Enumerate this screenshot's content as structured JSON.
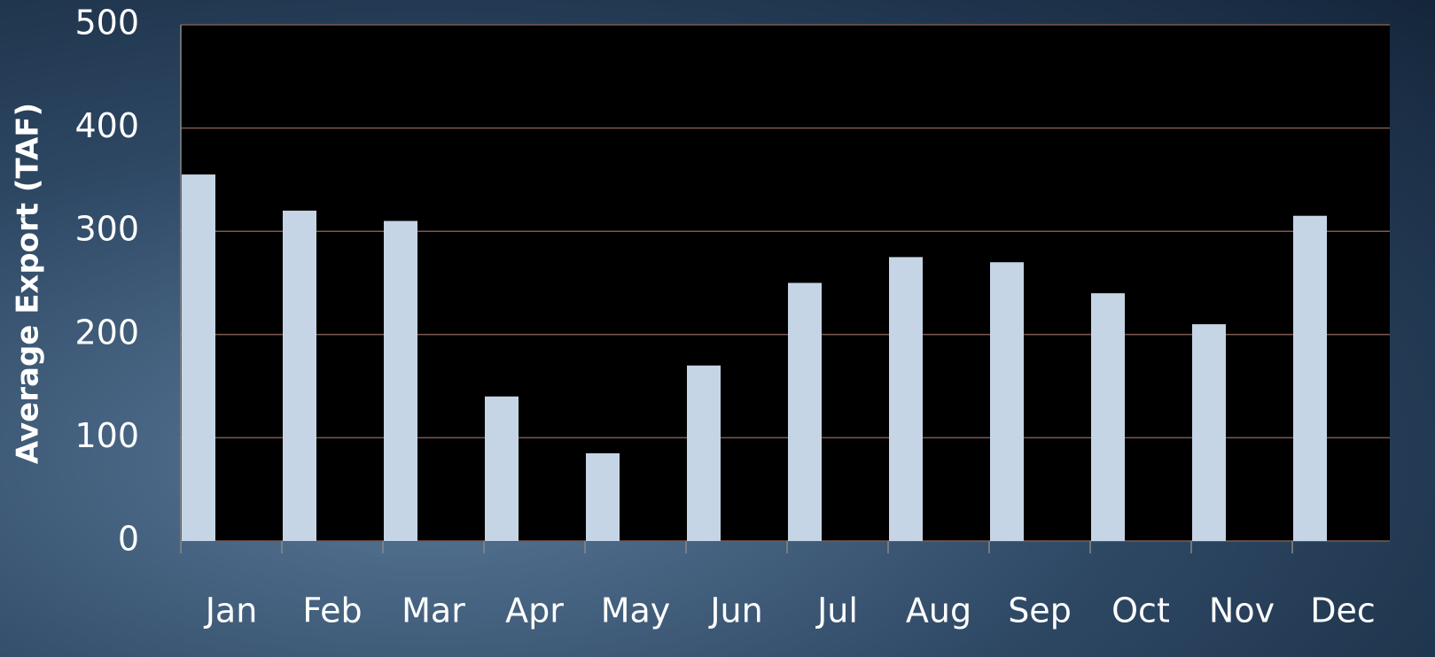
{
  "chart_data": {
    "type": "bar",
    "y_axis_label": "Average Export (TAF)",
    "categories": [
      "Jan",
      "Feb",
      "Mar",
      "Apr",
      "May",
      "Jun",
      "Jul",
      "Aug",
      "Sep",
      "Oct",
      "Nov",
      "Dec"
    ],
    "values": [
      355,
      320,
      310,
      140,
      85,
      170,
      250,
      275,
      270,
      240,
      210,
      315
    ],
    "color": "#c5d5e6",
    "ylim": [
      0,
      500
    ],
    "yticks": [
      0,
      100,
      200,
      300,
      400,
      500
    ],
    "grid": true
  }
}
